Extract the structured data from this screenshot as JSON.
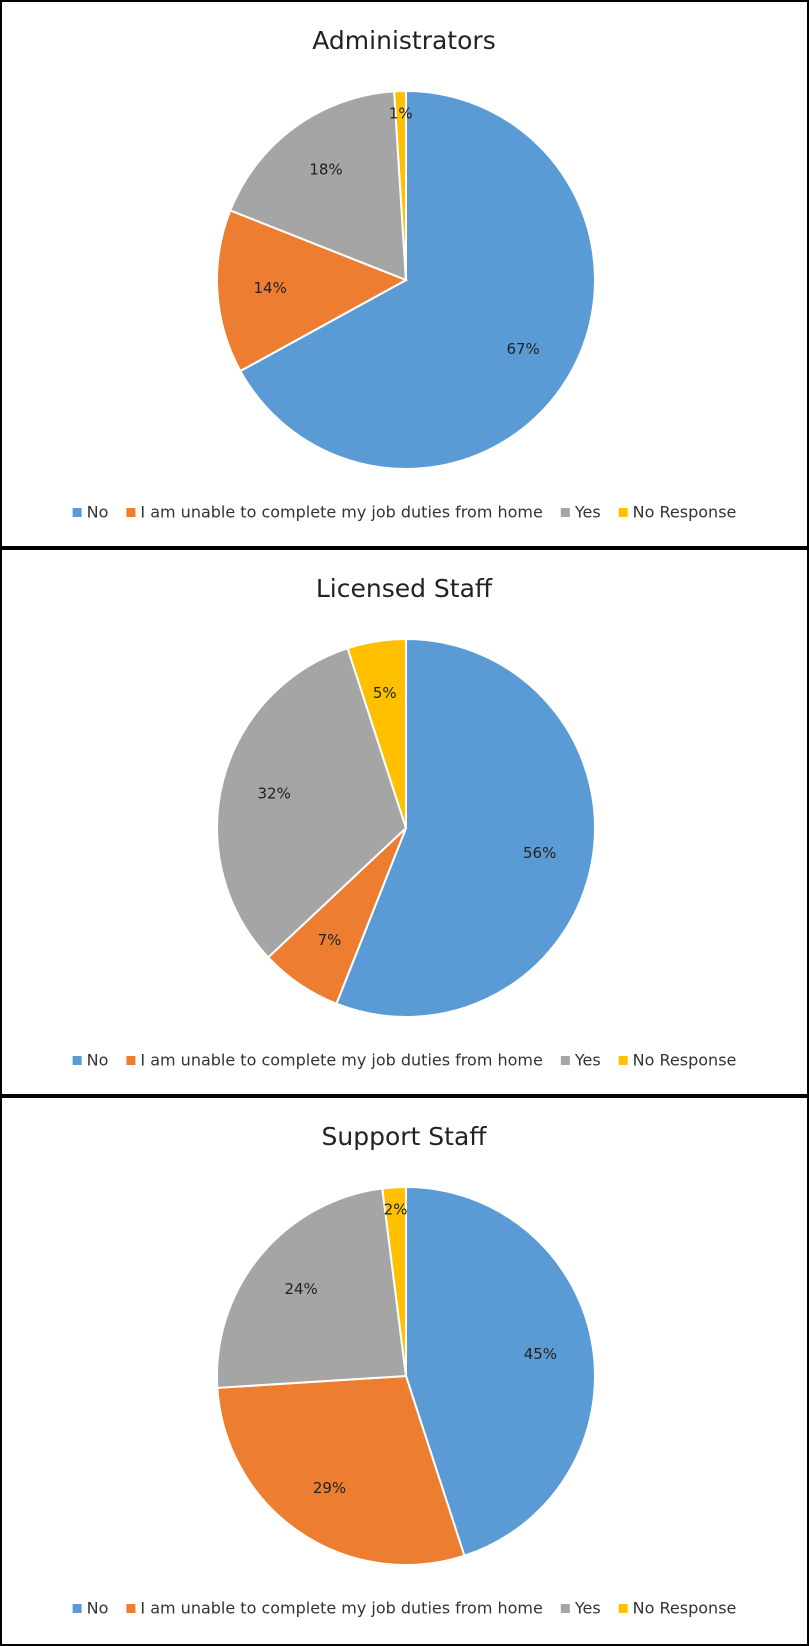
{
  "chart_data": [
    {
      "type": "pie",
      "title": "Administrators",
      "categories": [
        "No",
        "I am unable to complete my job duties from home",
        "Yes",
        "No Response"
      ],
      "values": [
        67,
        14,
        18,
        1
      ],
      "value_labels": [
        "67%",
        "14%",
        "18%",
        "1%"
      ],
      "colors": [
        "#5b9bd5",
        "#ed7d31",
        "#a5a5a5",
        "#ffc000"
      ],
      "legend": "bottom"
    },
    {
      "type": "pie",
      "title": "Licensed Staff",
      "categories": [
        "No",
        "I am unable to complete my job duties from home",
        "Yes",
        "No Response"
      ],
      "values": [
        56,
        7,
        32,
        5
      ],
      "value_labels": [
        "56%",
        "7%",
        "32%",
        "5%"
      ],
      "colors": [
        "#5b9bd5",
        "#ed7d31",
        "#a5a5a5",
        "#ffc000"
      ],
      "legend": "bottom"
    },
    {
      "type": "pie",
      "title": "Support Staff",
      "categories": [
        "No",
        "I am unable to complete my job duties from home",
        "Yes",
        "No Response"
      ],
      "values": [
        45,
        29,
        24,
        2
      ],
      "value_labels": [
        "45%",
        "29%",
        "24%",
        "2%"
      ],
      "colors": [
        "#5b9bd5",
        "#ed7d31",
        "#a5a5a5",
        "#ffc000"
      ],
      "legend": "bottom"
    }
  ]
}
